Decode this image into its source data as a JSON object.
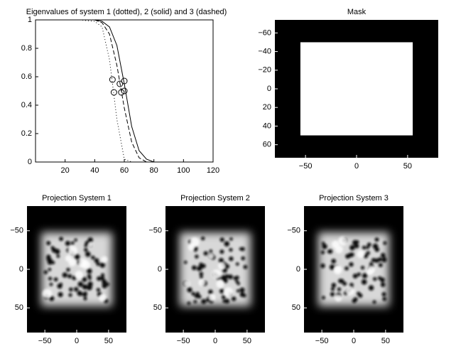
{
  "chart_data": [
    {
      "type": "line",
      "title": "Eigenvalues of system 1 (dotted), 2 (solid) and 3 (dashed)",
      "xlim": [
        0,
        120
      ],
      "ylim": [
        0,
        1
      ],
      "xticks": [
        20,
        40,
        60,
        80,
        100,
        120
      ],
      "yticks": [
        0,
        0.2,
        0.4,
        0.6,
        0.8,
        1
      ],
      "x": [
        1,
        30,
        40,
        45,
        50,
        55,
        60,
        65,
        70,
        75,
        80,
        120
      ],
      "series": [
        {
          "style": "dotted",
          "color": "#000000",
          "values": [
            1,
            1,
            0.99,
            0.95,
            0.72,
            0.3,
            0.02,
            0,
            0,
            0,
            0,
            0
          ]
        },
        {
          "style": "solid",
          "color": "#000000",
          "values": [
            1,
            1,
            1,
            0.99,
            0.95,
            0.82,
            0.55,
            0.25,
            0.08,
            0.02,
            0,
            0
          ]
        },
        {
          "style": "dashed",
          "color": "#000000",
          "values": [
            1,
            1,
            1,
            0.98,
            0.9,
            0.68,
            0.38,
            0.14,
            0.03,
            0,
            0,
            0
          ]
        }
      ],
      "markers": {
        "x": [
          52,
          53,
          57,
          58,
          60,
          60
        ],
        "y": [
          0.58,
          0.49,
          0.55,
          0.49,
          0.57,
          0.5
        ]
      }
    },
    {
      "type": "image",
      "title": "Mask",
      "xlim": [
        -80,
        80
      ],
      "ylim": [
        -74,
        74
      ],
      "xticks": [
        {
          "value": -50,
          "label": "−50"
        },
        0,
        50
      ],
      "yticks": [
        {
          "value": -60,
          "label": "−60"
        },
        {
          "value": -40,
          "label": "−40"
        },
        {
          "value": -20,
          "label": "−20"
        },
        0,
        20,
        40,
        60
      ],
      "square": {
        "x": [
          -55,
          55
        ],
        "y": [
          -50,
          50
        ]
      }
    },
    {
      "type": "image",
      "title": "Projection System 1",
      "xlim": [
        -78,
        78
      ],
      "ylim": [
        -82,
        82
      ],
      "xticks": [
        {
          "value": -50,
          "label": "−50"
        },
        0,
        50
      ],
      "yticks": [
        {
          "value": -50,
          "label": "−50"
        },
        0,
        50
      ]
    },
    {
      "type": "image",
      "title": "Projection System 2",
      "xlim": [
        -78,
        78
      ],
      "ylim": [
        -82,
        82
      ],
      "xticks": [
        {
          "value": -50,
          "label": "−50"
        },
        0,
        50
      ],
      "yticks": [
        {
          "value": -50,
          "label": "−50"
        },
        0,
        50
      ]
    },
    {
      "type": "image",
      "title": "Projection System 3",
      "xlim": [
        -78,
        78
      ],
      "ylim": [
        -82,
        82
      ],
      "xticks": [
        {
          "value": -50,
          "label": "−50"
        },
        0,
        50
      ],
      "yticks": [
        {
          "value": -50,
          "label": "−50"
        },
        0,
        50
      ]
    }
  ]
}
